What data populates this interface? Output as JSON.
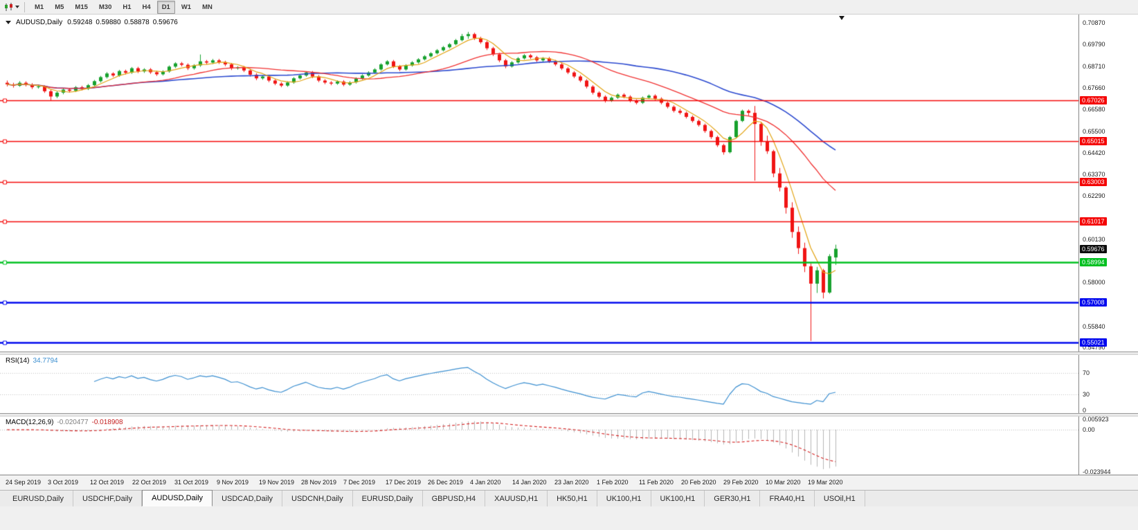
{
  "toolbar": {
    "icons": [
      "candlestick-chart-icon",
      "dropdown-caret-icon"
    ],
    "timeframes": [
      {
        "label": "M1",
        "active": false
      },
      {
        "label": "M5",
        "active": false
      },
      {
        "label": "M15",
        "active": false
      },
      {
        "label": "M30",
        "active": false
      },
      {
        "label": "H1",
        "active": false
      },
      {
        "label": "H4",
        "active": false
      },
      {
        "label": "D1",
        "active": true
      },
      {
        "label": "W1",
        "active": false
      },
      {
        "label": "MN",
        "active": false
      }
    ]
  },
  "chart": {
    "title": {
      "symbol": "AUDUSD,Daily",
      "open": "0.59248",
      "high": "0.59880",
      "low": "0.58878",
      "close": "0.59676"
    },
    "price_axis_ticks": [
      "0.70870",
      "0.69790",
      "0.68710",
      "0.67660",
      "0.66580",
      "0.65500",
      "0.64420",
      "0.63370",
      "0.62290",
      "0.60130",
      "0.58000",
      "0.55840",
      "0.54790"
    ],
    "levels": [
      {
        "label": "0.67026",
        "price": 0.67026,
        "color": "#f40606",
        "width": 1.6
      },
      {
        "label": "0.65015",
        "price": 0.65015,
        "color": "#f40606",
        "width": 1.6
      },
      {
        "label": "0.63003",
        "price": 0.63003,
        "color": "#f40606",
        "width": 1.6
      },
      {
        "label": "0.61017",
        "price": 0.61017,
        "color": "#f40606",
        "width": 1.6
      },
      {
        "label": "0.58994",
        "price": 0.58994,
        "color": "#00c020",
        "width": 2.4
      },
      {
        "label": "0.57008",
        "price": 0.57008,
        "color": "#0008ee",
        "width": 2.4
      },
      {
        "label": "0.55021",
        "price": 0.55021,
        "color": "#0008ee",
        "width": 2.4
      }
    ],
    "bid": {
      "label": "0.59676",
      "price": 0.59676,
      "bg": "#0d0d0d"
    }
  },
  "indicators": {
    "rsi": {
      "name": "RSI(14)",
      "value": "34.7794",
      "line_color": "#3c8fd0",
      "axis_ticks": [
        {
          "label": "70",
          "v": 70
        },
        {
          "label": "30",
          "v": 30
        },
        {
          "label": "0",
          "v": 0
        }
      ]
    },
    "macd": {
      "name": "MACD(12,26,9)",
      "value_main": "-0.020477",
      "value_signal": "-0.018908",
      "hist_color": "#b4b4b4",
      "signal_color": "#d42020",
      "axis_ticks": [
        {
          "label": "0.005923",
          "v": 0.005923
        },
        {
          "label": "0.00",
          "v": 0
        },
        {
          "label": "-0.023944",
          "v": -0.023944
        }
      ]
    }
  },
  "tabs": [
    {
      "label": "EURUSD,Daily",
      "active": false
    },
    {
      "label": "USDCHF,Daily",
      "active": false
    },
    {
      "label": "AUDUSD,Daily",
      "active": true
    },
    {
      "label": "USDCAD,Daily",
      "active": false
    },
    {
      "label": "USDCNH,Daily",
      "active": false
    },
    {
      "label": "EURUSD,Daily",
      "active": false
    },
    {
      "label": "GBPUSD,H4",
      "active": false
    },
    {
      "label": "XAUUSD,H1",
      "active": false
    },
    {
      "label": "HK50,H1",
      "active": false
    },
    {
      "label": "UK100,H1",
      "active": false
    },
    {
      "label": "UK100,H1",
      "active": false
    },
    {
      "label": "GER30,H1",
      "active": false
    },
    {
      "label": "FRA40,H1",
      "active": false
    },
    {
      "label": "USOil,H1",
      "active": false
    }
  ],
  "chart_data": {
    "type": "candlestick",
    "symbol": "AUDUSD",
    "timeframe": "Daily",
    "price_range": {
      "top": 0.7128,
      "bottom": 0.5459
    },
    "dates": [
      "24 Sep 2019",
      "3 Oct 2019",
      "12 Oct 2019",
      "22 Oct 2019",
      "31 Oct 2019",
      "9 Nov 2019",
      "19 Nov 2019",
      "28 Nov 2019",
      "7 Dec 2019",
      "17 Dec 2019",
      "26 Dec 2019",
      "4 Jan 2020",
      "14 Jan 2020",
      "23 Jan 2020",
      "1 Feb 2020",
      "11 Feb 2020",
      "20 Feb 2020",
      "29 Feb 2020",
      "10 Mar 2020",
      "19 Mar 2020"
    ],
    "up_color": "#17a12d",
    "down_color": "#f01414",
    "ma_fast": {
      "period": 5,
      "color": "#e2a312"
    },
    "ma_medium": {
      "period": 21,
      "color": "#f03030"
    },
    "ma_slow": {
      "period": 40,
      "color": "#2b49cf"
    },
    "candles": [
      [
        0.679,
        0.6801,
        0.6772,
        0.6782
      ],
      [
        0.6782,
        0.679,
        0.6766,
        0.6775
      ],
      [
        0.6775,
        0.6798,
        0.677,
        0.679
      ],
      [
        0.679,
        0.6797,
        0.6772,
        0.6781
      ],
      [
        0.6781,
        0.6788,
        0.6759,
        0.6768
      ],
      [
        0.6768,
        0.6781,
        0.6761,
        0.6772
      ],
      [
        0.6772,
        0.6777,
        0.674,
        0.6748
      ],
      [
        0.6748,
        0.6756,
        0.6703,
        0.6722
      ],
      [
        0.6722,
        0.6748,
        0.6714,
        0.6741
      ],
      [
        0.6741,
        0.6763,
        0.6733,
        0.6756
      ],
      [
        0.6756,
        0.6762,
        0.6742,
        0.675
      ],
      [
        0.675,
        0.6774,
        0.6744,
        0.6768
      ],
      [
        0.6768,
        0.6775,
        0.6752,
        0.676
      ],
      [
        0.676,
        0.6784,
        0.6754,
        0.6778
      ],
      [
        0.6778,
        0.6804,
        0.6771,
        0.6798
      ],
      [
        0.6798,
        0.6824,
        0.6791,
        0.6818
      ],
      [
        0.6818,
        0.6843,
        0.6811,
        0.6836
      ],
      [
        0.6836,
        0.6842,
        0.6818,
        0.6826
      ],
      [
        0.6826,
        0.6854,
        0.682,
        0.6848
      ],
      [
        0.6848,
        0.6855,
        0.6831,
        0.684
      ],
      [
        0.684,
        0.6868,
        0.6834,
        0.6862
      ],
      [
        0.6862,
        0.6869,
        0.6838,
        0.6846
      ],
      [
        0.6846,
        0.6862,
        0.6839,
        0.6856
      ],
      [
        0.6856,
        0.6863,
        0.6834,
        0.6842
      ],
      [
        0.6842,
        0.6849,
        0.6824,
        0.6832
      ],
      [
        0.6832,
        0.6852,
        0.6826,
        0.6846
      ],
      [
        0.6846,
        0.6876,
        0.684,
        0.687
      ],
      [
        0.687,
        0.6892,
        0.6863,
        0.6886
      ],
      [
        0.6886,
        0.6893,
        0.6871,
        0.6879
      ],
      [
        0.6879,
        0.6886,
        0.6853,
        0.6862
      ],
      [
        0.6862,
        0.6882,
        0.6855,
        0.6876
      ],
      [
        0.6876,
        0.693,
        0.6869,
        0.6896
      ],
      [
        0.6896,
        0.6903,
        0.6881,
        0.689
      ],
      [
        0.689,
        0.6908,
        0.6883,
        0.6901
      ],
      [
        0.6901,
        0.6908,
        0.6883,
        0.6892
      ],
      [
        0.6892,
        0.6899,
        0.6872,
        0.6881
      ],
      [
        0.6881,
        0.6888,
        0.6853,
        0.6862
      ],
      [
        0.6862,
        0.6872,
        0.6855,
        0.6866
      ],
      [
        0.6866,
        0.6873,
        0.6843,
        0.6851
      ],
      [
        0.6851,
        0.6858,
        0.6821,
        0.683
      ],
      [
        0.683,
        0.6837,
        0.6803,
        0.6812
      ],
      [
        0.6812,
        0.6827,
        0.6805,
        0.6821
      ],
      [
        0.6821,
        0.6828,
        0.6793,
        0.6801
      ],
      [
        0.6801,
        0.6808,
        0.6778,
        0.6786
      ],
      [
        0.6786,
        0.6793,
        0.6768,
        0.6776
      ],
      [
        0.6776,
        0.6797,
        0.677,
        0.6791
      ],
      [
        0.6791,
        0.6818,
        0.6785,
        0.6812
      ],
      [
        0.6812,
        0.6832,
        0.6806,
        0.6826
      ],
      [
        0.6826,
        0.6847,
        0.682,
        0.6841
      ],
      [
        0.6841,
        0.6848,
        0.6813,
        0.6821
      ],
      [
        0.6821,
        0.6828,
        0.6793,
        0.6801
      ],
      [
        0.6801,
        0.6808,
        0.6783,
        0.6791
      ],
      [
        0.6791,
        0.6798,
        0.6778,
        0.6786
      ],
      [
        0.6786,
        0.6802,
        0.678,
        0.6796
      ],
      [
        0.6796,
        0.6803,
        0.6773,
        0.6781
      ],
      [
        0.6781,
        0.6798,
        0.6775,
        0.6792
      ],
      [
        0.6792,
        0.6817,
        0.6786,
        0.6811
      ],
      [
        0.6811,
        0.6832,
        0.6805,
        0.6826
      ],
      [
        0.6826,
        0.6847,
        0.682,
        0.6841
      ],
      [
        0.6841,
        0.6862,
        0.6835,
        0.6856
      ],
      [
        0.6856,
        0.6887,
        0.685,
        0.6881
      ],
      [
        0.6881,
        0.6902,
        0.6875,
        0.6896
      ],
      [
        0.6896,
        0.6903,
        0.6863,
        0.6871
      ],
      [
        0.6871,
        0.6878,
        0.6848,
        0.6856
      ],
      [
        0.6856,
        0.6882,
        0.685,
        0.6876
      ],
      [
        0.6876,
        0.6897,
        0.687,
        0.6891
      ],
      [
        0.6891,
        0.6912,
        0.6885,
        0.6906
      ],
      [
        0.6906,
        0.6927,
        0.69,
        0.6921
      ],
      [
        0.6921,
        0.6942,
        0.6915,
        0.6936
      ],
      [
        0.6936,
        0.6957,
        0.693,
        0.6951
      ],
      [
        0.6951,
        0.6972,
        0.6945,
        0.6966
      ],
      [
        0.6966,
        0.6987,
        0.696,
        0.6981
      ],
      [
        0.6981,
        0.7007,
        0.6975,
        0.7001
      ],
      [
        0.7001,
        0.7032,
        0.6995,
        0.7021
      ],
      [
        0.7021,
        0.7042,
        0.7008,
        0.7031
      ],
      [
        0.7031,
        0.7038,
        0.7002,
        0.7011
      ],
      [
        0.7011,
        0.7018,
        0.6983,
        0.6991
      ],
      [
        0.6991,
        0.6998,
        0.6952,
        0.6961
      ],
      [
        0.6961,
        0.6968,
        0.6922,
        0.6931
      ],
      [
        0.6931,
        0.6938,
        0.6892,
        0.6901
      ],
      [
        0.6901,
        0.6908,
        0.6862,
        0.6871
      ],
      [
        0.6871,
        0.6897,
        0.6865,
        0.6891
      ],
      [
        0.6891,
        0.6917,
        0.6885,
        0.6911
      ],
      [
        0.6911,
        0.6932,
        0.6905,
        0.6926
      ],
      [
        0.6926,
        0.6933,
        0.6908,
        0.6916
      ],
      [
        0.6916,
        0.6923,
        0.6893,
        0.6901
      ],
      [
        0.6901,
        0.6917,
        0.6895,
        0.6911
      ],
      [
        0.6911,
        0.6918,
        0.6888,
        0.6896
      ],
      [
        0.6896,
        0.6903,
        0.6873,
        0.6881
      ],
      [
        0.6881,
        0.6888,
        0.6853,
        0.6861
      ],
      [
        0.6861,
        0.6868,
        0.6833,
        0.6841
      ],
      [
        0.6841,
        0.6848,
        0.6813,
        0.6821
      ],
      [
        0.6821,
        0.6828,
        0.6793,
        0.6801
      ],
      [
        0.6801,
        0.6808,
        0.6762,
        0.6771
      ],
      [
        0.6771,
        0.6778,
        0.6732,
        0.6741
      ],
      [
        0.6741,
        0.6748,
        0.6713,
        0.6721
      ],
      [
        0.6721,
        0.6728,
        0.6692,
        0.6701
      ],
      [
        0.6701,
        0.6722,
        0.6695,
        0.6716
      ],
      [
        0.6716,
        0.6737,
        0.671,
        0.6731
      ],
      [
        0.6731,
        0.6738,
        0.6713,
        0.6721
      ],
      [
        0.6721,
        0.6728,
        0.6693,
        0.6701
      ],
      [
        0.6701,
        0.6708,
        0.6683,
        0.6691
      ],
      [
        0.6691,
        0.6722,
        0.6685,
        0.6716
      ],
      [
        0.6716,
        0.6732,
        0.6709,
        0.6726
      ],
      [
        0.6726,
        0.6733,
        0.6703,
        0.6711
      ],
      [
        0.6711,
        0.6718,
        0.6683,
        0.6691
      ],
      [
        0.6691,
        0.6698,
        0.6663,
        0.6671
      ],
      [
        0.6671,
        0.6678,
        0.6643,
        0.6651
      ],
      [
        0.6651,
        0.6661,
        0.6633,
        0.6641
      ],
      [
        0.6641,
        0.6648,
        0.6613,
        0.6621
      ],
      [
        0.6621,
        0.6628,
        0.6593,
        0.6601
      ],
      [
        0.6601,
        0.6608,
        0.6573,
        0.6581
      ],
      [
        0.6581,
        0.6588,
        0.6542,
        0.6551
      ],
      [
        0.6551,
        0.6558,
        0.6512,
        0.6521
      ],
      [
        0.6521,
        0.6528,
        0.6472,
        0.6481
      ],
      [
        0.6481,
        0.6488,
        0.6434,
        0.6446
      ],
      [
        0.6446,
        0.6527,
        0.644,
        0.6521
      ],
      [
        0.6521,
        0.6607,
        0.6515,
        0.6601
      ],
      [
        0.6601,
        0.6657,
        0.6595,
        0.6651
      ],
      [
        0.6651,
        0.6658,
        0.6628,
        0.6641
      ],
      [
        0.6641,
        0.6675,
        0.6305,
        0.6586
      ],
      [
        0.6586,
        0.6593,
        0.6478,
        0.6501
      ],
      [
        0.6501,
        0.6528,
        0.6438,
        0.6451
      ],
      [
        0.6451,
        0.6458,
        0.6322,
        0.6341
      ],
      [
        0.6341,
        0.6368,
        0.6252,
        0.6271
      ],
      [
        0.6271,
        0.6278,
        0.6142,
        0.6171
      ],
      [
        0.6171,
        0.6198,
        0.6022,
        0.6051
      ],
      [
        0.6051,
        0.6078,
        0.5942,
        0.5971
      ],
      [
        0.5971,
        0.5998,
        0.5852,
        0.5881
      ],
      [
        0.5881,
        0.5895,
        0.5511,
        0.5795
      ],
      [
        0.5795,
        0.5878,
        0.5749,
        0.5861
      ],
      [
        0.5861,
        0.5868,
        0.5722,
        0.5751
      ],
      [
        0.5751,
        0.5941,
        0.5745,
        0.5931
      ],
      [
        0.59248,
        0.5988,
        0.58878,
        0.59676
      ]
    ]
  }
}
